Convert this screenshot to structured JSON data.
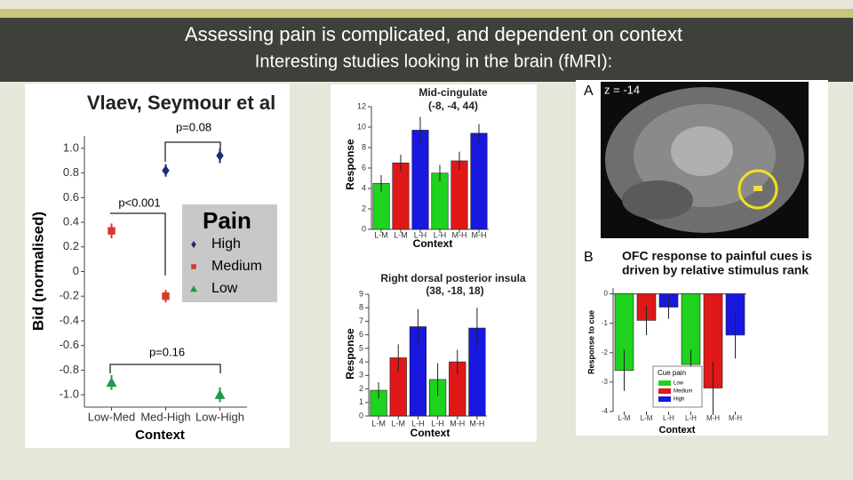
{
  "header": {
    "title": "Assessing pain is complicated, and dependent on context",
    "subtitle": "Interesting studies looking in the brain (fMRI):"
  },
  "chart_data": [
    {
      "type": "dot",
      "title": "Vlaev, Seymour et al",
      "y_label": "Bid (normalised)",
      "x_label": "Context",
      "categories": [
        "Low-Med",
        "Med-High",
        "Low-High"
      ],
      "series": [
        {
          "name": "High",
          "color": "#1f2a7a",
          "marker": "diamond",
          "values": [
            null,
            0.82,
            0.94
          ],
          "errors": [
            null,
            0.05,
            0.06
          ]
        },
        {
          "name": "Medium",
          "color": "#d63a2a",
          "marker": "square",
          "values": [
            0.33,
            -0.2,
            null
          ],
          "errors": [
            0.06,
            0.05,
            null
          ]
        },
        {
          "name": "Low",
          "color": "#1e9a4a",
          "marker": "triangle",
          "values": [
            -0.9,
            null,
            -1.0
          ],
          "errors": [
            0.06,
            null,
            0.06
          ]
        }
      ],
      "legend_title": "Pain",
      "annotations": [
        "p=0.08",
        "p<0.001",
        "p=0.16"
      ],
      "ylim": [
        -1.1,
        1.1
      ],
      "yticks": [
        {
          "value": -1,
          "label": "-1.0"
        },
        -0.8,
        -0.6,
        -0.4,
        -0.2,
        0,
        0.2,
        0.4,
        0.6,
        0.8,
        {
          "value": 1,
          "label": "1.0"
        }
      ]
    },
    {
      "type": "bar",
      "title": "Mid-cingulate",
      "subtitle": "(-8, -4, 44)",
      "y_label": "Response",
      "x_label": "Context",
      "categories": [
        "L-M",
        "L-M",
        "L-H",
        "L-H",
        "M-H",
        "M-H"
      ],
      "values": [
        4.5,
        6.5,
        9.7,
        5.5,
        6.7,
        9.4
      ],
      "errors": [
        0.8,
        0.8,
        1.3,
        0.8,
        0.9,
        0.9
      ],
      "colors": [
        "#1ed21e",
        "#e01818",
        "#1818e0",
        "#1ed21e",
        "#e01818",
        "#1818e0"
      ],
      "ylim": [
        0,
        12
      ],
      "yticks": [
        0,
        2,
        4,
        6,
        8,
        10,
        12
      ]
    },
    {
      "type": "bar",
      "title": "Right dorsal posterior insula",
      "subtitle": "(38, -18, 18)",
      "y_label": "Response",
      "x_label": "Context",
      "categories": [
        "L-M",
        "L-M",
        "L-H",
        "L-H",
        "M-H",
        "M-H"
      ],
      "values": [
        1.9,
        4.3,
        6.6,
        2.7,
        4.0,
        6.5
      ],
      "errors": [
        0.6,
        1.0,
        1.3,
        1.2,
        0.9,
        1.5
      ],
      "colors": [
        "#1ed21e",
        "#e01818",
        "#1818e0",
        "#1ed21e",
        "#e01818",
        "#1818e0"
      ],
      "ylim": [
        0,
        9
      ],
      "yticks": [
        0,
        1,
        2,
        3,
        4,
        5,
        6,
        7,
        8,
        9
      ]
    },
    {
      "type": "bar",
      "title": [
        "OFC response to painful cues is",
        "driven by relative stimulus rank"
      ],
      "panel_labels": [
        "A",
        "B"
      ],
      "slice_label": "z = -14",
      "y_label": "Response to cue",
      "x_label": "Context",
      "categories": [
        "L-M",
        "L-M",
        "L-H",
        "L-H",
        "M-H",
        "M-H"
      ],
      "values": [
        -2.6,
        -0.9,
        -0.45,
        -2.4,
        -3.2,
        -1.4
      ],
      "errors": [
        0.7,
        0.5,
        0.4,
        0.5,
        0.9,
        0.8
      ],
      "colors": [
        "#1ed21e",
        "#e01818",
        "#1818e0",
        "#1ed21e",
        "#e01818",
        "#1818e0"
      ],
      "legend_title": "Cue pain",
      "legend": [
        {
          "name": "Low",
          "color": "#1ed21e"
        },
        {
          "name": "Medium",
          "color": "#e01818"
        },
        {
          "name": "High",
          "color": "#1818e0"
        }
      ],
      "ylim": [
        -4,
        0.2
      ],
      "yticks": [
        -4,
        -3,
        -2,
        -1,
        0
      ]
    }
  ]
}
